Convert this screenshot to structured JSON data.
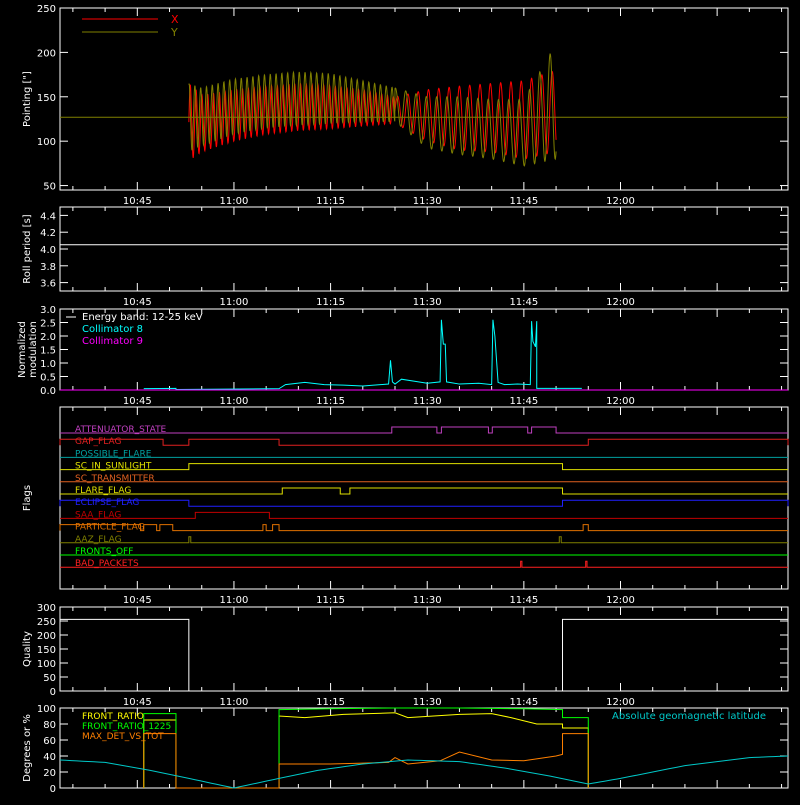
{
  "colors": {
    "background": "#000000",
    "axes": "#ffffff",
    "pointing_x": "#ff0000",
    "pointing_y": "#808000",
    "collimator_8": "#00ffff",
    "collimator_9": "#ff00ff",
    "front_ratio": "#ffff00",
    "front_ratio_1225": "#00ff00",
    "max_det_vs_tot": "#ff8000",
    "geomag_lat": "#00c8c8"
  },
  "chart_data": [
    {
      "id": "pointing",
      "type": "line",
      "ylabel": "Pointing [\"]",
      "xlim": [
        "10:33",
        "12:26"
      ],
      "xticks": [
        "10:45",
        "11:00",
        "11:15",
        "11:30",
        "11:45",
        "12:00"
      ],
      "ylim": [
        45,
        250
      ],
      "yticks": [
        "50",
        "100",
        "150",
        "200",
        "250"
      ],
      "legend": {
        "placement": "top-left"
      },
      "reference_line": 127,
      "series": [
        {
          "name": "X",
          "envelope": {
            "x": [
              "10:53",
              "10:55",
              "11:00",
              "11:05",
              "11:10",
              "11:15",
              "11:20",
              "11:25",
              "11:30",
              "11:35",
              "11:40",
              "11:45",
              "11:50"
            ],
            "upper": [
              165,
              152,
              158,
              162,
              165,
              163,
              158,
              150,
              158,
              162,
              165,
              168,
              180
            ],
            "lower": [
              78,
              88,
              100,
              108,
              112,
              114,
              117,
              120,
              100,
              90,
              88,
              80,
              88
            ]
          }
        },
        {
          "name": "Y",
          "envelope": {
            "x": [
              "10:53",
              "10:55",
              "11:00",
              "11:05",
              "11:10",
              "11:15",
              "11:20",
              "11:25",
              "11:30",
              "11:35",
              "11:40",
              "11:45",
              "11:50"
            ],
            "upper": [
              165,
              160,
              170,
              175,
              178,
              176,
              168,
              160,
              150,
              150,
              147,
              147,
              210
            ],
            "lower": [
              88,
              95,
              108,
              115,
              118,
              120,
              122,
              122,
              92,
              85,
              80,
              72,
              80
            ]
          }
        }
      ]
    },
    {
      "id": "roll_period",
      "type": "line",
      "ylabel": "Roll period [s]",
      "xlim": [
        "10:33",
        "12:26"
      ],
      "xticks": [
        "10:45",
        "11:00",
        "11:15",
        "11:30",
        "11:45",
        "12:00"
      ],
      "ylim": [
        3.5,
        4.5
      ],
      "yticks": [
        "3.6",
        "3.8",
        "4.0",
        "4.2",
        "4.4"
      ],
      "series": [
        {
          "x": [
            "10:33",
            "12:26"
          ],
          "values": [
            4.05,
            4.05
          ]
        }
      ]
    },
    {
      "id": "modulation",
      "type": "line",
      "ylabel": [
        "Normalized",
        "modulation"
      ],
      "xlim": [
        "10:33",
        "12:26"
      ],
      "xticks": [
        "10:45",
        "11:00",
        "11:15",
        "11:30",
        "11:45",
        "12:00"
      ],
      "ylim": [
        0,
        3.0
      ],
      "yticks": [
        "0.0",
        "0.5",
        "1.0",
        "1.5",
        "2.0",
        "2.5",
        "3.0"
      ],
      "legend": {
        "placement": "top-left",
        "header": "Energy band: 12-25 keV"
      },
      "series": [
        {
          "name": "Collimator 8",
          "x": [
            "10:46",
            "10:51",
            "10:51",
            "11:07",
            "11:08",
            "11:11",
            "11:14",
            "11:17",
            "11:20",
            "11:24",
            "11:24.3",
            "11:24.6",
            "11:25",
            "11:26",
            "11:30",
            "11:32",
            "11:32.2",
            "11:32.5",
            "11:32.8",
            "11:33",
            "11:35",
            "11:38",
            "11:40",
            "11:40.2",
            "11:40.5",
            "11:41",
            "11:42",
            "11:44",
            "11:46",
            "11:46.2",
            "11:46.4",
            "11:46.8",
            "11:47",
            "11:47",
            "11:54"
          ],
          "values": [
            0.05,
            0.06,
            0.02,
            0.05,
            0.2,
            0.28,
            0.2,
            0.18,
            0.15,
            0.22,
            1.1,
            0.3,
            0.22,
            0.4,
            0.25,
            0.3,
            2.6,
            1.7,
            1.7,
            0.3,
            0.22,
            0.25,
            0.2,
            2.6,
            2.0,
            0.28,
            0.2,
            0.22,
            0.2,
            2.55,
            1.8,
            1.6,
            2.55,
            0.06,
            0.06
          ]
        },
        {
          "name": "Collimator 9",
          "x": [
            "10:33",
            "12:26"
          ],
          "values": [
            0,
            0
          ]
        }
      ]
    },
    {
      "id": "flags",
      "type": "step",
      "ylabel": "Flags",
      "xlim": [
        "10:33",
        "12:26"
      ],
      "xticks": [
        "10:45",
        "11:00",
        "11:15",
        "11:30",
        "11:45",
        "12:00"
      ],
      "series": [
        {
          "name": "ATTENUATOR_STATE",
          "on_intervals": [
            [
              "11:24.5",
              "11:31.5"
            ],
            [
              "11:32.2",
              "11:39.5"
            ],
            [
              "11:40.1",
              "11:45.6"
            ],
            [
              "11:46.2",
              "11:50"
            ]
          ]
        },
        {
          "name": "GAP_FLAG",
          "on_intervals": [
            [
              "10:33",
              "10:49"
            ],
            [
              "10:53",
              "11:07"
            ],
            [
              "11:55",
              "12:26"
            ]
          ]
        },
        {
          "name": "POSSIBLE_FLARE",
          "on_intervals": []
        },
        {
          "name": "SC_IN_SUNLIGHT",
          "on_intervals": [
            [
              "10:53",
              "11:51"
            ]
          ]
        },
        {
          "name": "SC_TRANSMITTER",
          "on_intervals": []
        },
        {
          "name": "FLARE_FLAG",
          "on_intervals": [
            [
              "11:07.5",
              "11:16.5"
            ],
            [
              "11:18",
              "11:51"
            ]
          ]
        },
        {
          "name": "ECLIPSE_FLAG",
          "on_intervals": [
            [
              "10:33",
              "10:53"
            ],
            [
              "11:51",
              "12:26"
            ]
          ]
        },
        {
          "name": "SAA_FLAG",
          "on_intervals": [
            [
              "10:54",
              "11:05.5"
            ]
          ]
        },
        {
          "name": "PARTICLE_FLAG",
          "on_intervals": [
            [
              "10:33",
              "10:45.5"
            ],
            [
              "10:46",
              "10:48"
            ],
            [
              "10:48.5",
              "10:50.5"
            ],
            [
              "11:04.5",
              "11:05"
            ],
            [
              "11:06",
              "11:07"
            ],
            [
              "11:54.2",
              "11:55"
            ]
          ]
        },
        {
          "name": "AAZ_FLAG",
          "on_intervals": [
            [
              "10:53",
              "10:53.3"
            ],
            [
              "11:50.5",
              "11:50.8"
            ]
          ]
        },
        {
          "name": "FRONTS_OFF",
          "on_intervals": []
        },
        {
          "name": "BAD_PACKETS",
          "on_intervals": [
            [
              "11:44.5",
              "11:44.7"
            ],
            [
              "11:54.6",
              "11:54.8"
            ]
          ]
        }
      ]
    },
    {
      "id": "quality",
      "type": "step",
      "ylabel": "Quality",
      "xlim": [
        "10:33",
        "12:26"
      ],
      "xticks": [
        "10:45",
        "11:00",
        "11:15",
        "11:30",
        "11:45",
        "12:00"
      ],
      "ylim": [
        0,
        300
      ],
      "yticks": [
        "0",
        "50",
        "100",
        "150",
        "200",
        "250",
        "300"
      ],
      "series": [
        {
          "x": [
            "10:33",
            "10:53",
            "10:53",
            "11:51",
            "11:51",
            "12:26"
          ],
          "values": [
            256,
            256,
            0,
            0,
            256,
            256
          ]
        }
      ]
    },
    {
      "id": "degrees",
      "type": "line",
      "ylabel": "Degrees or %",
      "xlim": [
        "10:33",
        "12:26"
      ],
      "ylim": [
        0,
        100
      ],
      "yticks": [
        "0",
        "20",
        "40",
        "60",
        "80",
        "100"
      ],
      "legend": {
        "placement": "top-left"
      },
      "series": [
        {
          "name": "FRONT_RATIO",
          "x": [
            "10:46",
            "10:46",
            "10:51",
            "10:51",
            "11:07",
            "11:07",
            "11:11",
            "11:17",
            "11:25",
            "11:27",
            "11:35",
            "11:40",
            "11:43",
            "11:47",
            "11:51",
            "11:51",
            "11:55",
            "11:55"
          ],
          "values": [
            0,
            85,
            85,
            0,
            0,
            90,
            88,
            92,
            94,
            88,
            92,
            93,
            88,
            80,
            80,
            75,
            75,
            0
          ]
        },
        {
          "name": "FRONT_RATIO_1225",
          "x": [
            "10:46",
            "10:46",
            "10:51",
            "10:51",
            "11:07",
            "11:07",
            "11:15",
            "11:25",
            "11:35",
            "11:45",
            "11:51",
            "11:51",
            "11:55",
            "11:55"
          ],
          "values": [
            0,
            93,
            93,
            0,
            0,
            98,
            99,
            100,
            100,
            99,
            98,
            88,
            88,
            0
          ]
        },
        {
          "name": "MAX_DET_VS_TOT",
          "x": [
            "10:46",
            "10:46",
            "10:51",
            "10:51",
            "11:07",
            "11:07",
            "11:15",
            "11:24",
            "11:25",
            "11:27",
            "11:32",
            "11:35",
            "11:40",
            "11:45",
            "11:50",
            "11:51",
            "11:51",
            "11:55",
            "11:55"
          ],
          "values": [
            0,
            68,
            68,
            0,
            0,
            30,
            30,
            32,
            38,
            30,
            34,
            45,
            35,
            34,
            40,
            42,
            68,
            68,
            0
          ]
        },
        {
          "name": "Absolute geomagnetic latitude",
          "x": [
            "10:33",
            "10:40",
            "10:47",
            "10:53",
            "11:00",
            "11:07",
            "11:13",
            "11:20",
            "11:27",
            "11:35",
            "11:42",
            "11:49",
            "11:55",
            "12:00",
            "12:10",
            "12:20",
            "12:26"
          ],
          "values": [
            35,
            32,
            22,
            12,
            0,
            12,
            22,
            30,
            35,
            33,
            25,
            15,
            5,
            12,
            28,
            38,
            40
          ]
        }
      ]
    }
  ]
}
